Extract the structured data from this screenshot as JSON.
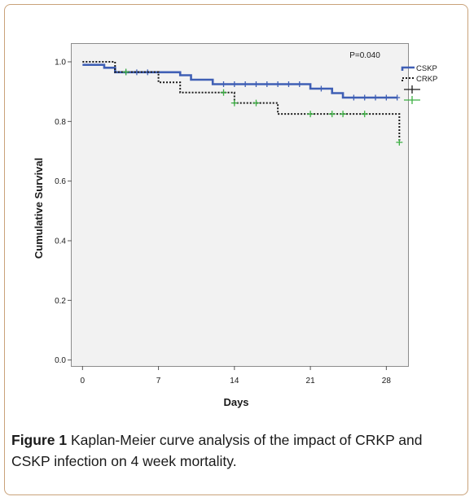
{
  "chart_data": {
    "type": "line",
    "subtype": "kaplan-meier step",
    "xlabel": "Days",
    "ylabel": "Cumulative Survival",
    "xlim": [
      -1,
      30
    ],
    "ylim": [
      -0.02,
      1.06
    ],
    "xticks": [
      0,
      7,
      14,
      21,
      28
    ],
    "yticks": [
      0.0,
      0.2,
      0.4,
      0.6,
      0.8,
      1.0
    ],
    "ytick_labels": [
      "0.0",
      "0.2",
      "0.4",
      "0.6",
      "0.8",
      "1.0"
    ],
    "annotation": "P=0.040",
    "series": [
      {
        "name": "CSKP",
        "color": "#3f5fb5",
        "style": "solid",
        "x": [
          0,
          2,
          3,
          7,
          9,
          10,
          12,
          21,
          23,
          24,
          29
        ],
        "y": [
          0.99,
          0.98,
          0.965,
          0.965,
          0.955,
          0.94,
          0.925,
          0.91,
          0.895,
          0.88,
          0.88
        ],
        "censored": [
          [
            4,
            0.965
          ],
          [
            5,
            0.965
          ],
          [
            6,
            0.965
          ],
          [
            13,
            0.925
          ],
          [
            14,
            0.925
          ],
          [
            15,
            0.925
          ],
          [
            16,
            0.925
          ],
          [
            17,
            0.925
          ],
          [
            18,
            0.925
          ],
          [
            19,
            0.925
          ],
          [
            20,
            0.925
          ],
          [
            22,
            0.91
          ],
          [
            25,
            0.88
          ],
          [
            26,
            0.88
          ],
          [
            27,
            0.88
          ],
          [
            28,
            0.88
          ],
          [
            29,
            0.88
          ]
        ]
      },
      {
        "name": "CRKP",
        "color": "#1a1a1a",
        "style": "dotted",
        "x": [
          0,
          3,
          7,
          9,
          14,
          18,
          29,
          29.2
        ],
        "y": [
          1.0,
          0.966,
          0.931,
          0.897,
          0.862,
          0.825,
          0.825,
          0.73
        ],
        "censored_color": "#3cb043",
        "censored": [
          [
            4,
            0.966
          ],
          [
            13,
            0.897
          ],
          [
            14,
            0.862
          ],
          [
            16,
            0.862
          ],
          [
            21,
            0.825
          ],
          [
            23,
            0.825
          ],
          [
            24,
            0.825
          ],
          [
            26,
            0.825
          ],
          [
            29.2,
            0.73
          ]
        ]
      }
    ],
    "legend": {
      "placement": "right-outside",
      "entries": [
        "CSKP",
        "CRKP"
      ],
      "censor_symbols": [
        "CSKP-censored",
        "CRKP-censored"
      ]
    }
  },
  "caption": {
    "label": "Figure 1",
    "text": " Kaplan-Meier curve analysis of the impact of CRKP and CSKP infection on 4 week mortality."
  }
}
